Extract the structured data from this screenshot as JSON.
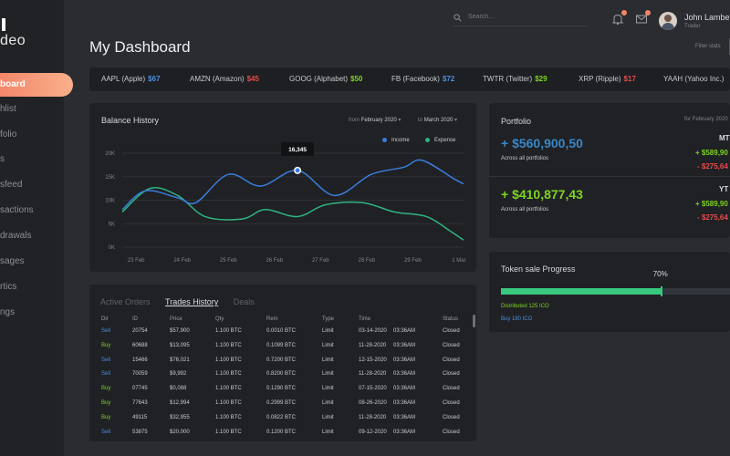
{
  "brand": {
    "mark": "I",
    "name": "deo"
  },
  "sidebar": {
    "items": [
      {
        "label": "board",
        "active": true
      },
      {
        "label": "hlist"
      },
      {
        "label": "folio"
      },
      {
        "label": "s"
      },
      {
        "label": "sfeed"
      },
      {
        "label": "sactions"
      },
      {
        "label": "drawals"
      },
      {
        "label": "sages"
      },
      {
        "label": "rtics"
      },
      {
        "label": "ngs"
      }
    ]
  },
  "header": {
    "search_placeholder": "Search...",
    "icons": [
      "bell-icon",
      "mail-icon"
    ],
    "user": {
      "name": "John Lambe",
      "role": "Trader"
    },
    "page_title": "My Dashboard",
    "filter_label": "Filter stats"
  },
  "ticker": [
    {
      "name": "AAPL (Apple)",
      "value": "$67",
      "color": "#4a90e2"
    },
    {
      "name": "AMZN (Amazon)",
      "value": "$45",
      "color": "#e84a4a"
    },
    {
      "name": "GOOG (Alphabet)",
      "value": "$50",
      "color": "#7ed321"
    },
    {
      "name": "FB (Facebook)",
      "value": "$72",
      "color": "#4a90e2"
    },
    {
      "name": "TWTR (Twitter)",
      "value": "$29",
      "color": "#7ed321"
    },
    {
      "name": "XRP (Ripple)",
      "value": "$17",
      "color": "#e84a4a"
    },
    {
      "name": "YAAH (Yahoo Inc.)",
      "value": ""
    }
  ],
  "balance": {
    "title": "Balance History",
    "from_label": "from",
    "from_value": "February 2020",
    "to_label": "to",
    "to_value": "March 2020",
    "tooltip": "16,345"
  },
  "chart_data": {
    "type": "line",
    "title": "Balance History",
    "x": [
      "23 Feb",
      "24 Feb",
      "25 Feb",
      "26 Feb",
      "27 Feb",
      "28 Feb",
      "29 Feb",
      "1 Mar"
    ],
    "y_ticks": [
      "0K",
      "5K",
      "10K",
      "15K",
      "20K"
    ],
    "ylim": [
      0,
      20000
    ],
    "grid": true,
    "legend_position": "top-right",
    "series": [
      {
        "name": "Income",
        "color": "#3b7ddd",
        "values": [
          [
            0,
            8000
          ],
          [
            0.5,
            12000
          ],
          [
            1.2,
            10500
          ],
          [
            1.6,
            9500
          ],
          [
            2.3,
            15500
          ],
          [
            3.0,
            13000
          ],
          [
            3.8,
            16345
          ],
          [
            4.6,
            11000
          ],
          [
            5.4,
            15500
          ],
          [
            6.1,
            17000
          ],
          [
            6.5,
            18500
          ],
          [
            7.2,
            14500
          ],
          [
            7.4,
            13500
          ]
        ]
      },
      {
        "name": "Expense",
        "color": "#2fb47f",
        "values": [
          [
            0,
            7500
          ],
          [
            0.6,
            12500
          ],
          [
            1.2,
            11000
          ],
          [
            1.8,
            6500
          ],
          [
            2.6,
            6000
          ],
          [
            3.1,
            8000
          ],
          [
            3.8,
            6500
          ],
          [
            4.4,
            9000
          ],
          [
            5.2,
            9500
          ],
          [
            5.9,
            7500
          ],
          [
            6.6,
            6500
          ],
          [
            7.1,
            3500
          ],
          [
            7.4,
            1500
          ]
        ]
      }
    ]
  },
  "portfolio": {
    "title": "Portfolio",
    "for_label": "for February 2020",
    "rows": [
      {
        "amount": "+ $560,900,50",
        "sub": "Across all portfolios",
        "color": "#3a86c7",
        "tag": "MT",
        "pos": "+ $589,90",
        "neg": "- $275,64"
      },
      {
        "amount": "+ $410,877,43",
        "sub": "Across all portfolios",
        "color": "#7ed321",
        "tag": "YT",
        "pos": "+ $589,90",
        "neg": "- $275,64"
      }
    ]
  },
  "trades": {
    "tabs": [
      {
        "label": "Active Orders"
      },
      {
        "label": "Trades History",
        "active": true
      },
      {
        "label": "Deals"
      }
    ],
    "columns": [
      "Dir",
      "ID",
      "Price",
      "Qty",
      "Rem",
      "Type",
      "Time",
      "Status"
    ],
    "rows": [
      [
        "Sell",
        "20754",
        "$57,900",
        "1.100 BTC",
        "0.0010 BTC",
        "Limit",
        "03-14-2020",
        "03:36AM",
        "Closed"
      ],
      [
        "Buy",
        "60688",
        "$13,095",
        "1.100 BTC",
        "0.1099 BTC",
        "Limit",
        "11-28-2020",
        "03:36AM",
        "Closed"
      ],
      [
        "Sell",
        "15466",
        "$76,021",
        "1.100 BTC",
        "0.7200 BTC",
        "Limit",
        "12-15-2020",
        "03:36AM",
        "Closed"
      ],
      [
        "Sell",
        "70059",
        "$9,992",
        "1.100 BTC",
        "0.8200 BTC",
        "Limit",
        "11-28-2020",
        "03:36AM",
        "Closed"
      ],
      [
        "Buy",
        "07745",
        "$0,088",
        "1.100 BTC",
        "0.1290 BTC",
        "Limit",
        "07-15-2020",
        "03:36AM",
        "Closed"
      ],
      [
        "Buy",
        "77643",
        "$12,994",
        "1.100 BTC",
        "0.2999 BTC",
        "Limit",
        "08-26-2020",
        "03:36AM",
        "Closed"
      ],
      [
        "Buy",
        "49115",
        "$32,955",
        "1.100 BTC",
        "0.0822 BTC",
        "Limit",
        "11-28-2020",
        "03:36AM",
        "Closed"
      ],
      [
        "Sell",
        "53875",
        "$20,000",
        "1.100 BTC",
        "0.1200 BTC",
        "Limit",
        "09-12-2020",
        "03:36AM",
        "Closed"
      ]
    ],
    "dir_colors": {
      "Buy": "#7ed321",
      "Sell": "#4a90e2"
    }
  },
  "token": {
    "title": "Token sale Progress",
    "percent_label": "70%",
    "progress": 0.7,
    "distributed": "Distributed 125 ICO",
    "buy": "Buy 180 ICO"
  },
  "colors": {
    "accent": "#f4876a",
    "income": "#3b7ddd",
    "expense": "#2fb47f",
    "progress": "#37c97f"
  }
}
